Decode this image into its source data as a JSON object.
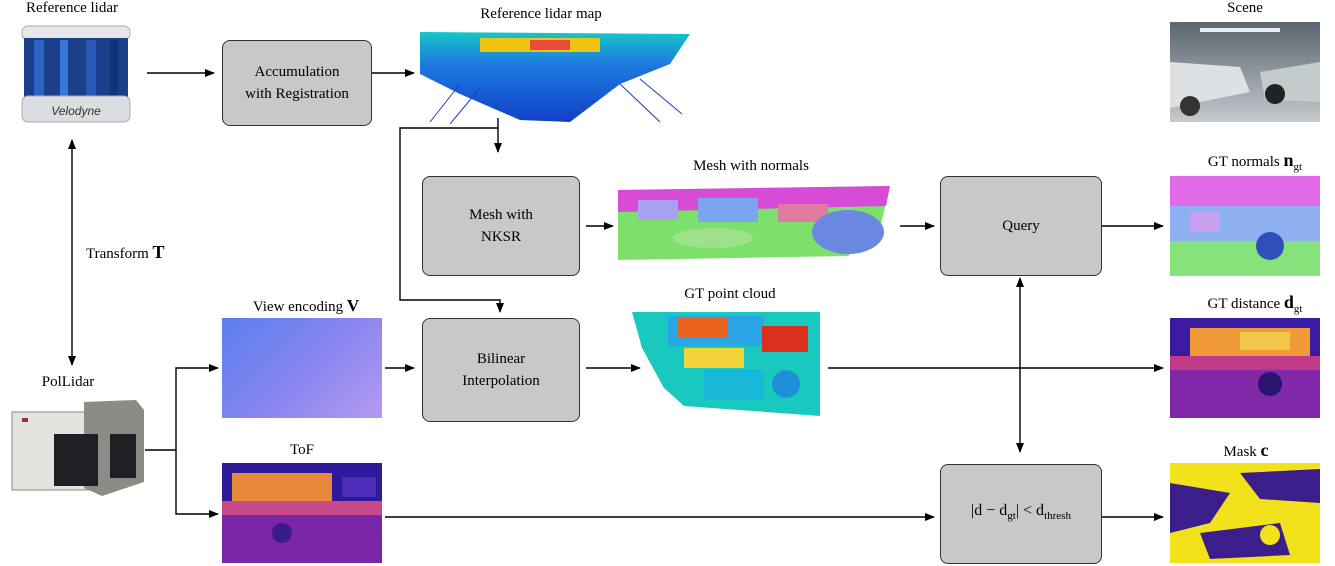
{
  "labels": {
    "reference_lidar": "Reference lidar",
    "reference_lidar_map": "Reference lidar map",
    "scene": "Scene",
    "mesh_with_normals": "Mesh with normals",
    "gt_normals_text": "GT normals",
    "gt_normals_sym": "n",
    "gt_sub": "gt",
    "transform_text": "Transform",
    "transform_sym": "T",
    "view_encoding_text": "View encoding",
    "view_encoding_sym": "V",
    "gt_point_cloud": "GT point cloud",
    "gt_distance_text": "GT distance",
    "gt_distance_sym": "d",
    "pollidar": "PolLidar",
    "tof": "ToF",
    "mask_text": "Mask",
    "mask_sym": "c",
    "velodyne_brand": "Velodyne"
  },
  "boxes": {
    "accumulation_line1": "Accumulation",
    "accumulation_line2": "with Registration",
    "mesh_nksr_line1": "Mesh with",
    "mesh_nksr_line2": "NKSR",
    "query": "Query",
    "bilinear_line1": "Bilinear",
    "bilinear_line2": "Interpolation",
    "threshold_lhs": "|d − d",
    "threshold_lhs_sub": "gt",
    "threshold_mid": "| < d",
    "threshold_rhs_sub": "thresh"
  },
  "colors": {
    "box_fill": "#c8c8c8",
    "arrow": "#000000"
  }
}
